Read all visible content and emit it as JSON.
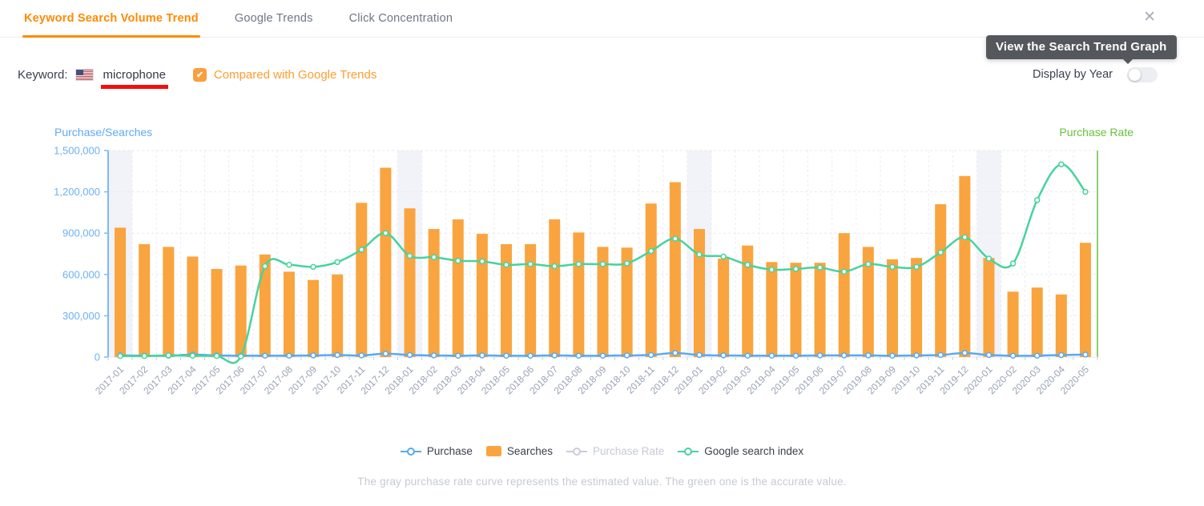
{
  "header": {
    "tabs": [
      {
        "label": "Keyword Search Volume Trend",
        "active": true
      },
      {
        "label": "Google Trends",
        "active": false
      },
      {
        "label": "Click Concentration",
        "active": false
      }
    ],
    "close_icon": "✕"
  },
  "controls": {
    "keyword_label": "Keyword:",
    "flag": "us-flag",
    "keyword_value": "microphone",
    "compare_checkbox": {
      "checked": true,
      "check_glyph": "✔",
      "label": "Compared with Google Trends"
    },
    "display_by_year": {
      "label": "Display by Year",
      "enabled": false
    }
  },
  "tooltip": {
    "text": "View the Search Trend Graph"
  },
  "colors": {
    "accent_orange": "#ff8a00",
    "bar_orange": "#f9a43f",
    "purchase_blue": "#58aaf2",
    "google_green": "#46d39d",
    "right_axis_green": "#67c23a",
    "disabled_gray": "#c6cad2",
    "keyword_underline_red": "#f50d0d"
  },
  "chart_data": {
    "type": "bar",
    "categories": [
      "2017-01",
      "2017-02",
      "2017-03",
      "2017-04",
      "2017-05",
      "2017-06",
      "2017-07",
      "2017-08",
      "2017-09",
      "2017-10",
      "2017-11",
      "2017-12",
      "2018-01",
      "2018-02",
      "2018-03",
      "2018-04",
      "2018-05",
      "2018-06",
      "2018-07",
      "2018-08",
      "2018-09",
      "2018-10",
      "2018-11",
      "2018-12",
      "2019-01",
      "2019-02",
      "2019-03",
      "2019-04",
      "2019-05",
      "2019-06",
      "2019-07",
      "2019-08",
      "2019-09",
      "2019-10",
      "2019-11",
      "2019-12",
      "2020-01",
      "2020-02",
      "2020-03",
      "2020-04",
      "2020-05"
    ],
    "series": [
      {
        "name": "Purchase",
        "type": "line",
        "color": "#58aaf2",
        "disabled": false,
        "values": [
          12000,
          10000,
          10000,
          18000,
          12000,
          10000,
          10000,
          10000,
          12000,
          15000,
          12000,
          25000,
          15000,
          12000,
          10000,
          12000,
          10000,
          10000,
          12000,
          10000,
          10000,
          12000,
          15000,
          30000,
          15000,
          12000,
          10000,
          10000,
          10000,
          12000,
          12000,
          12000,
          10000,
          12000,
          15000,
          30000,
          15000,
          10000,
          10000,
          15000,
          18000
        ]
      },
      {
        "name": "Searches",
        "type": "bar",
        "color": "#f9a43f",
        "disabled": false,
        "values": [
          940000,
          820000,
          800000,
          730000,
          640000,
          665000,
          745000,
          620000,
          560000,
          600000,
          1120000,
          1375000,
          1080000,
          930000,
          1000000,
          895000,
          820000,
          820000,
          1000000,
          905000,
          800000,
          795000,
          1115000,
          1270000,
          930000,
          715000,
          810000,
          690000,
          685000,
          685000,
          900000,
          800000,
          710000,
          720000,
          1110000,
          1315000,
          720000,
          475000,
          505000,
          455000,
          830000
        ]
      },
      {
        "name": "Purchase Rate",
        "type": "line",
        "color": "#c9cdd5",
        "disabled": true,
        "values": []
      },
      {
        "name": "Google search index",
        "type": "line",
        "color": "#46d39d",
        "disabled": false,
        "values": [
          8000,
          8000,
          12000,
          10000,
          8000,
          5000,
          660000,
          670000,
          655000,
          690000,
          780000,
          900000,
          735000,
          725000,
          700000,
          695000,
          670000,
          675000,
          660000,
          675000,
          675000,
          680000,
          770000,
          860000,
          745000,
          730000,
          670000,
          635000,
          640000,
          650000,
          620000,
          675000,
          655000,
          655000,
          760000,
          870000,
          715000,
          680000,
          1140000,
          1400000,
          1200000
        ]
      }
    ],
    "left_axis": {
      "name": "Purchase/Searches",
      "color": "#69b1f6",
      "min": 0,
      "max": 1500000,
      "tick_step": 300000,
      "tick_labels": [
        "0",
        "300,000",
        "600,000",
        "900,000",
        "1,200,000",
        "1,500,000"
      ]
    },
    "right_axis": {
      "name": "Purchase Rate",
      "color": "#67c23a"
    },
    "highlight_months": [
      "2017-01",
      "2018-01",
      "2019-01",
      "2020-01"
    ],
    "grid": true,
    "legend_position": "bottom"
  },
  "footnote": "The gray purchase rate curve represents the estimated value. The green one is the accurate value."
}
